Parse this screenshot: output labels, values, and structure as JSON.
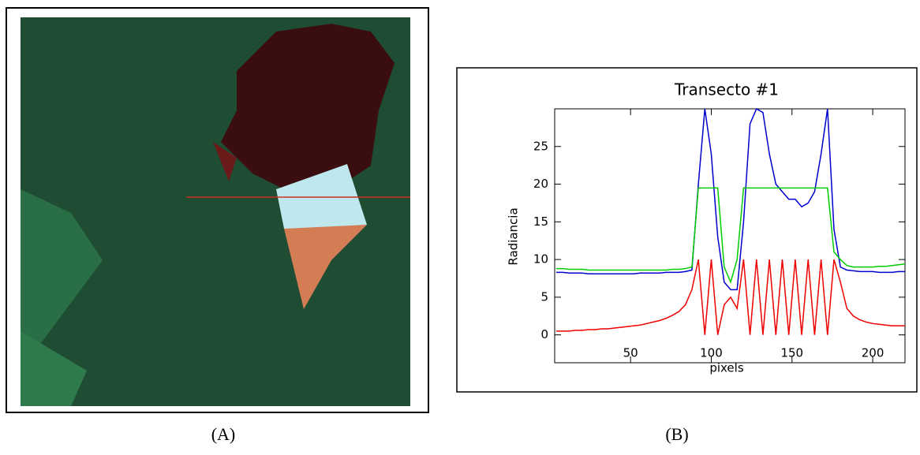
{
  "captions": [
    "(A)",
    "(B)"
  ],
  "chart_data": {
    "type": "line",
    "title": "Transecto #1",
    "xlabel": "pixels",
    "ylabel": "Radiancia",
    "xlim": [
      3,
      220
    ],
    "ylim": [
      -3.7,
      30
    ],
    "xticks": [
      50,
      100,
      150,
      200
    ],
    "yticks": [
      0,
      5,
      10,
      15,
      20,
      25
    ],
    "x": [
      4,
      8,
      12,
      16,
      20,
      24,
      28,
      32,
      36,
      40,
      44,
      48,
      52,
      56,
      60,
      64,
      68,
      72,
      76,
      80,
      84,
      88,
      92,
      96,
      100,
      104,
      108,
      112,
      116,
      120,
      124,
      128,
      132,
      136,
      140,
      144,
      148,
      152,
      156,
      160,
      164,
      168,
      172,
      176,
      180,
      184,
      188,
      192,
      196,
      200,
      204,
      208,
      212,
      216,
      220
    ],
    "series": [
      {
        "color": "#0000cc",
        "values": [
          8.3,
          8.3,
          8.2,
          8.2,
          8.2,
          8.1,
          8.1,
          8.1,
          8.1,
          8.1,
          8.1,
          8.1,
          8.1,
          8.2,
          8.2,
          8.2,
          8.2,
          8.3,
          8.3,
          8.3,
          8.4,
          8.6,
          20,
          30,
          24,
          13,
          7,
          6,
          6,
          15,
          28,
          30,
          29.5,
          24,
          20,
          19,
          18,
          18,
          17,
          17.5,
          19,
          24,
          30,
          14,
          9,
          8.6,
          8.5,
          8.4,
          8.4,
          8.4,
          8.3,
          8.3,
          8.3,
          8.4,
          8.4
        ]
      },
      {
        "color": "#00cc00",
        "values": [
          8.8,
          8.8,
          8.7,
          8.7,
          8.7,
          8.6,
          8.6,
          8.6,
          8.6,
          8.6,
          8.6,
          8.6,
          8.6,
          8.6,
          8.6,
          8.6,
          8.6,
          8.6,
          8.7,
          8.7,
          8.8,
          9,
          19.5,
          19.5,
          19.5,
          19.5,
          9,
          7,
          10,
          19.5,
          19.5,
          19.5,
          19.5,
          19.5,
          19.5,
          19.5,
          19.5,
          19.5,
          19.5,
          19.5,
          19.5,
          19.5,
          19.5,
          11,
          10,
          9.2,
          9,
          9,
          9,
          9,
          9.1,
          9.1,
          9.2,
          9.3,
          9.4
        ]
      },
      {
        "color": "#ee0000",
        "values": [
          0.5,
          0.5,
          0.5,
          0.6,
          0.6,
          0.7,
          0.7,
          0.8,
          0.8,
          0.9,
          1,
          1.1,
          1.2,
          1.3,
          1.5,
          1.7,
          1.9,
          2.2,
          2.6,
          3.1,
          4,
          6,
          10,
          0,
          10,
          0,
          4,
          5,
          3.5,
          10,
          0,
          10,
          0,
          10,
          0,
          10,
          0,
          10,
          0,
          10,
          0,
          10,
          0,
          10,
          7,
          3.5,
          2.5,
          2,
          1.7,
          1.5,
          1.4,
          1.3,
          1.2,
          1.2,
          1.2
        ]
      }
    ]
  }
}
